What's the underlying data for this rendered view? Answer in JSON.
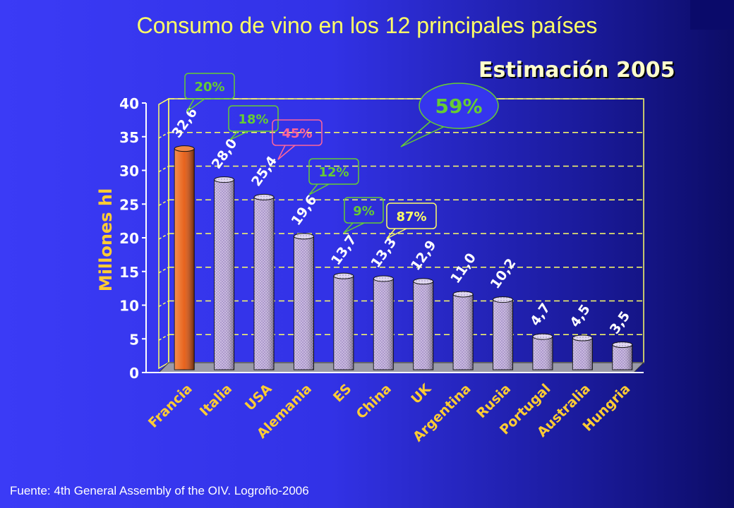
{
  "title": "Consumo de vino en los 12 principales países",
  "subtitle": "Estimación 2005",
  "source": "Fuente: 4th General Assembly of the OIV. Logroño-2006",
  "colors": {
    "highlight_bar": "#e8641e",
    "bar": "#b8a8d8",
    "axis_text": "#ffffff",
    "category_text": "#ffcc33",
    "ylabel": "#ffcc33",
    "gridline": "#ffff66",
    "callout_green": "#66cc33",
    "callout_pink": "#ff6699",
    "callout_yellow": "#ffff66"
  },
  "chart_data": {
    "type": "bar",
    "categories": [
      "Francia",
      "Italia",
      "USA",
      "Alemania",
      "ES",
      "China",
      "UK",
      "Argentina",
      "Rusia",
      "Portugal",
      "Australia",
      "Hungria"
    ],
    "values": [
      32.6,
      28.0,
      25.4,
      19.6,
      13.7,
      13.3,
      12.9,
      11.0,
      10.2,
      4.7,
      4.5,
      3.5
    ],
    "value_labels": [
      "32,6",
      "28,0",
      "25,4",
      "19,6",
      "13,7",
      "13,3",
      "12,9",
      "11,0",
      "10,2",
      "4,7",
      "4,5",
      "3,5"
    ],
    "highlight_index": 0,
    "ylabel": "Millones hl",
    "xlabel": "",
    "ylim": [
      0,
      40
    ],
    "yticks": [
      0,
      5,
      10,
      15,
      20,
      25,
      30,
      35,
      40
    ],
    "grid": true,
    "annotations": [
      {
        "text": "20%",
        "anchor_index": 0,
        "style": "green"
      },
      {
        "text": "18%",
        "anchor_index": 1,
        "style": "green"
      },
      {
        "text": "45%",
        "anchor_index": 2,
        "style": "pink"
      },
      {
        "text": "12%",
        "anchor_index": 3,
        "style": "green"
      },
      {
        "text": "9%",
        "anchor_index": 4,
        "style": "green"
      },
      {
        "text": "87%",
        "anchor_index": 5,
        "style": "yellow"
      },
      {
        "text": "59%",
        "anchor_index": 6,
        "style": "green-large"
      }
    ]
  }
}
